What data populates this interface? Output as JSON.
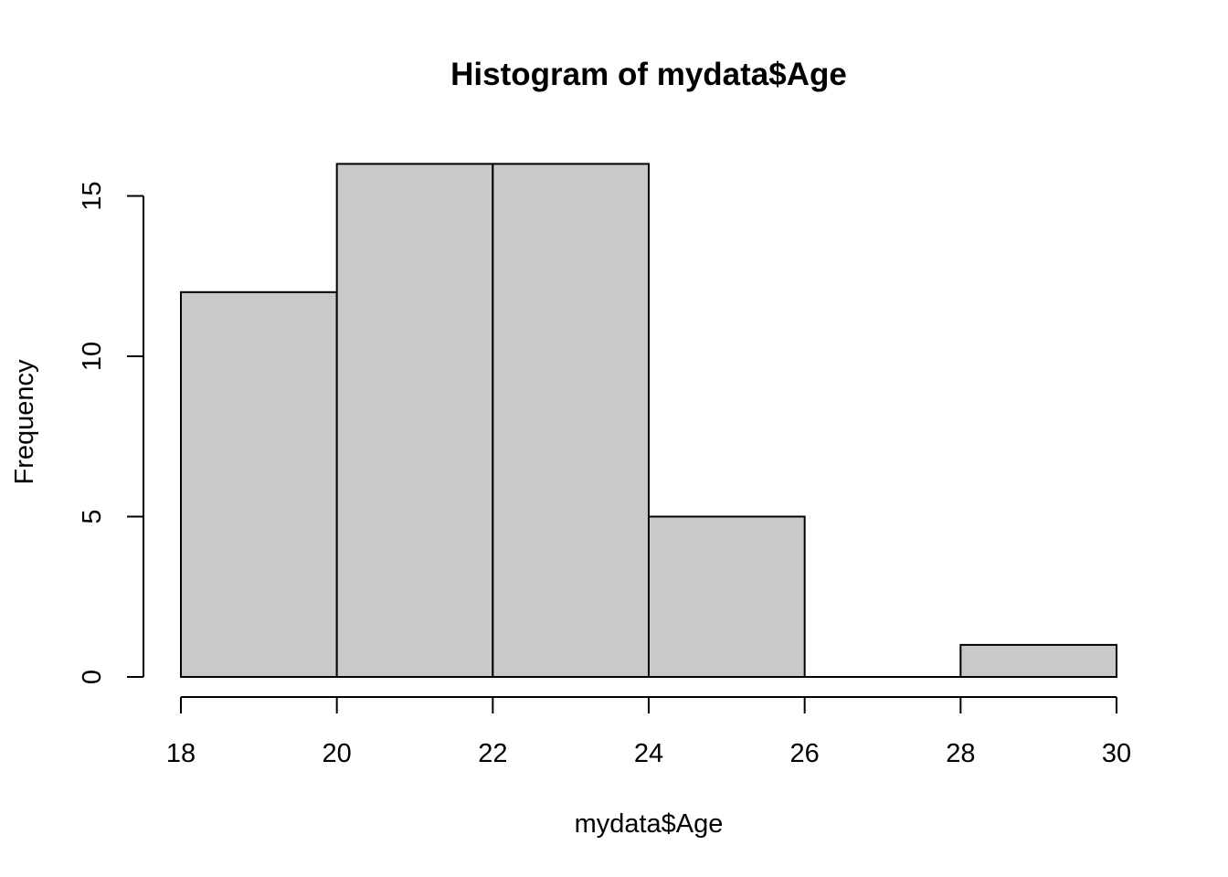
{
  "chart_data": {
    "type": "bar",
    "title": "Histogram of mydata$Age",
    "xlabel": "mydata$Age",
    "ylabel": "Frequency",
    "bins": [
      {
        "start": 18,
        "end": 20,
        "count": 12
      },
      {
        "start": 20,
        "end": 22,
        "count": 16
      },
      {
        "start": 22,
        "end": 24,
        "count": 16
      },
      {
        "start": 24,
        "end": 26,
        "count": 5
      },
      {
        "start": 26,
        "end": 28,
        "count": 0
      },
      {
        "start": 28,
        "end": 30,
        "count": 1
      }
    ],
    "x_ticks": [
      "18",
      "20",
      "22",
      "24",
      "26",
      "28",
      "30"
    ],
    "y_ticks": [
      "0",
      "5",
      "10",
      "15"
    ],
    "xlim": [
      18,
      30
    ],
    "ylim": [
      0,
      16
    ],
    "grid": false,
    "colors": {
      "bar_fill": "#c9c9c9",
      "bar_stroke": "#000000"
    }
  }
}
